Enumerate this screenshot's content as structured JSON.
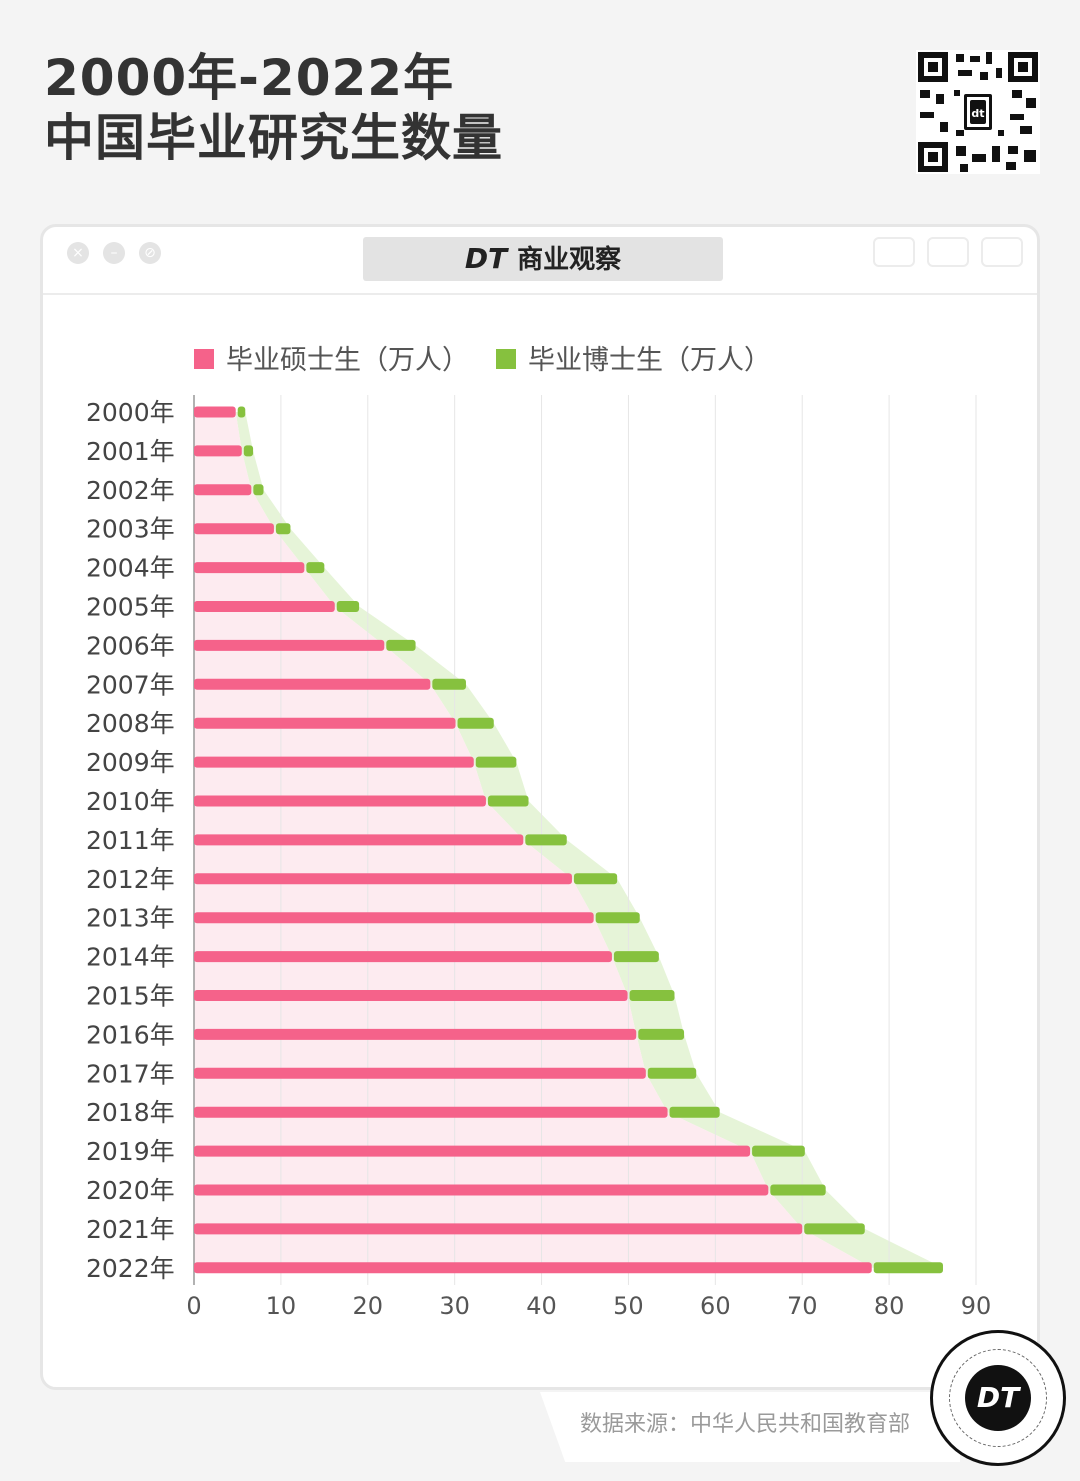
{
  "header": {
    "title_line1": "2000年-2022年",
    "title_line2": "中国毕业研究生数量"
  },
  "window": {
    "logo_text": "DT",
    "brand_text": "商业观察"
  },
  "footer": {
    "source": "数据来源：中华人民共和国教育部",
    "badge_text": "DT"
  },
  "colors": {
    "master": "#f5628a",
    "doctor": "#86c13e",
    "master_area": "#fdebf0",
    "doctor_area": "#e6f4d8"
  },
  "chart_data": {
    "type": "bar",
    "orientation": "horizontal",
    "stacked": true,
    "categories": [
      "2000年",
      "2001年",
      "2002年",
      "2003年",
      "2004年",
      "2005年",
      "2006年",
      "2007年",
      "2008年",
      "2009年",
      "2010年",
      "2011年",
      "2012年",
      "2013年",
      "2014年",
      "2015年",
      "2016年",
      "2017年",
      "2018年",
      "2019年",
      "2020年",
      "2021年",
      "2022年"
    ],
    "series": [
      {
        "name": "毕业硕士生（万人）",
        "values": [
          4.8,
          5.5,
          6.6,
          9.2,
          12.7,
          16.2,
          21.9,
          27.2,
          30.1,
          32.2,
          33.6,
          37.9,
          43.5,
          46.0,
          48.1,
          49.9,
          50.9,
          52.0,
          54.5,
          64.0,
          66.1,
          70.0,
          78.0
        ]
      },
      {
        "name": "毕业博士生（万人）",
        "values": [
          1.1,
          1.3,
          1.4,
          1.9,
          2.3,
          2.8,
          3.6,
          4.1,
          4.4,
          4.9,
          4.9,
          5.0,
          5.2,
          5.3,
          5.4,
          5.4,
          5.5,
          5.8,
          6.0,
          6.3,
          6.6,
          7.2,
          8.2
        ]
      }
    ],
    "xlim": [
      0,
      90
    ],
    "xticks": [
      0,
      10,
      20,
      30,
      40,
      50,
      60,
      70,
      80,
      90
    ],
    "grid": true,
    "legend": "top-left"
  }
}
